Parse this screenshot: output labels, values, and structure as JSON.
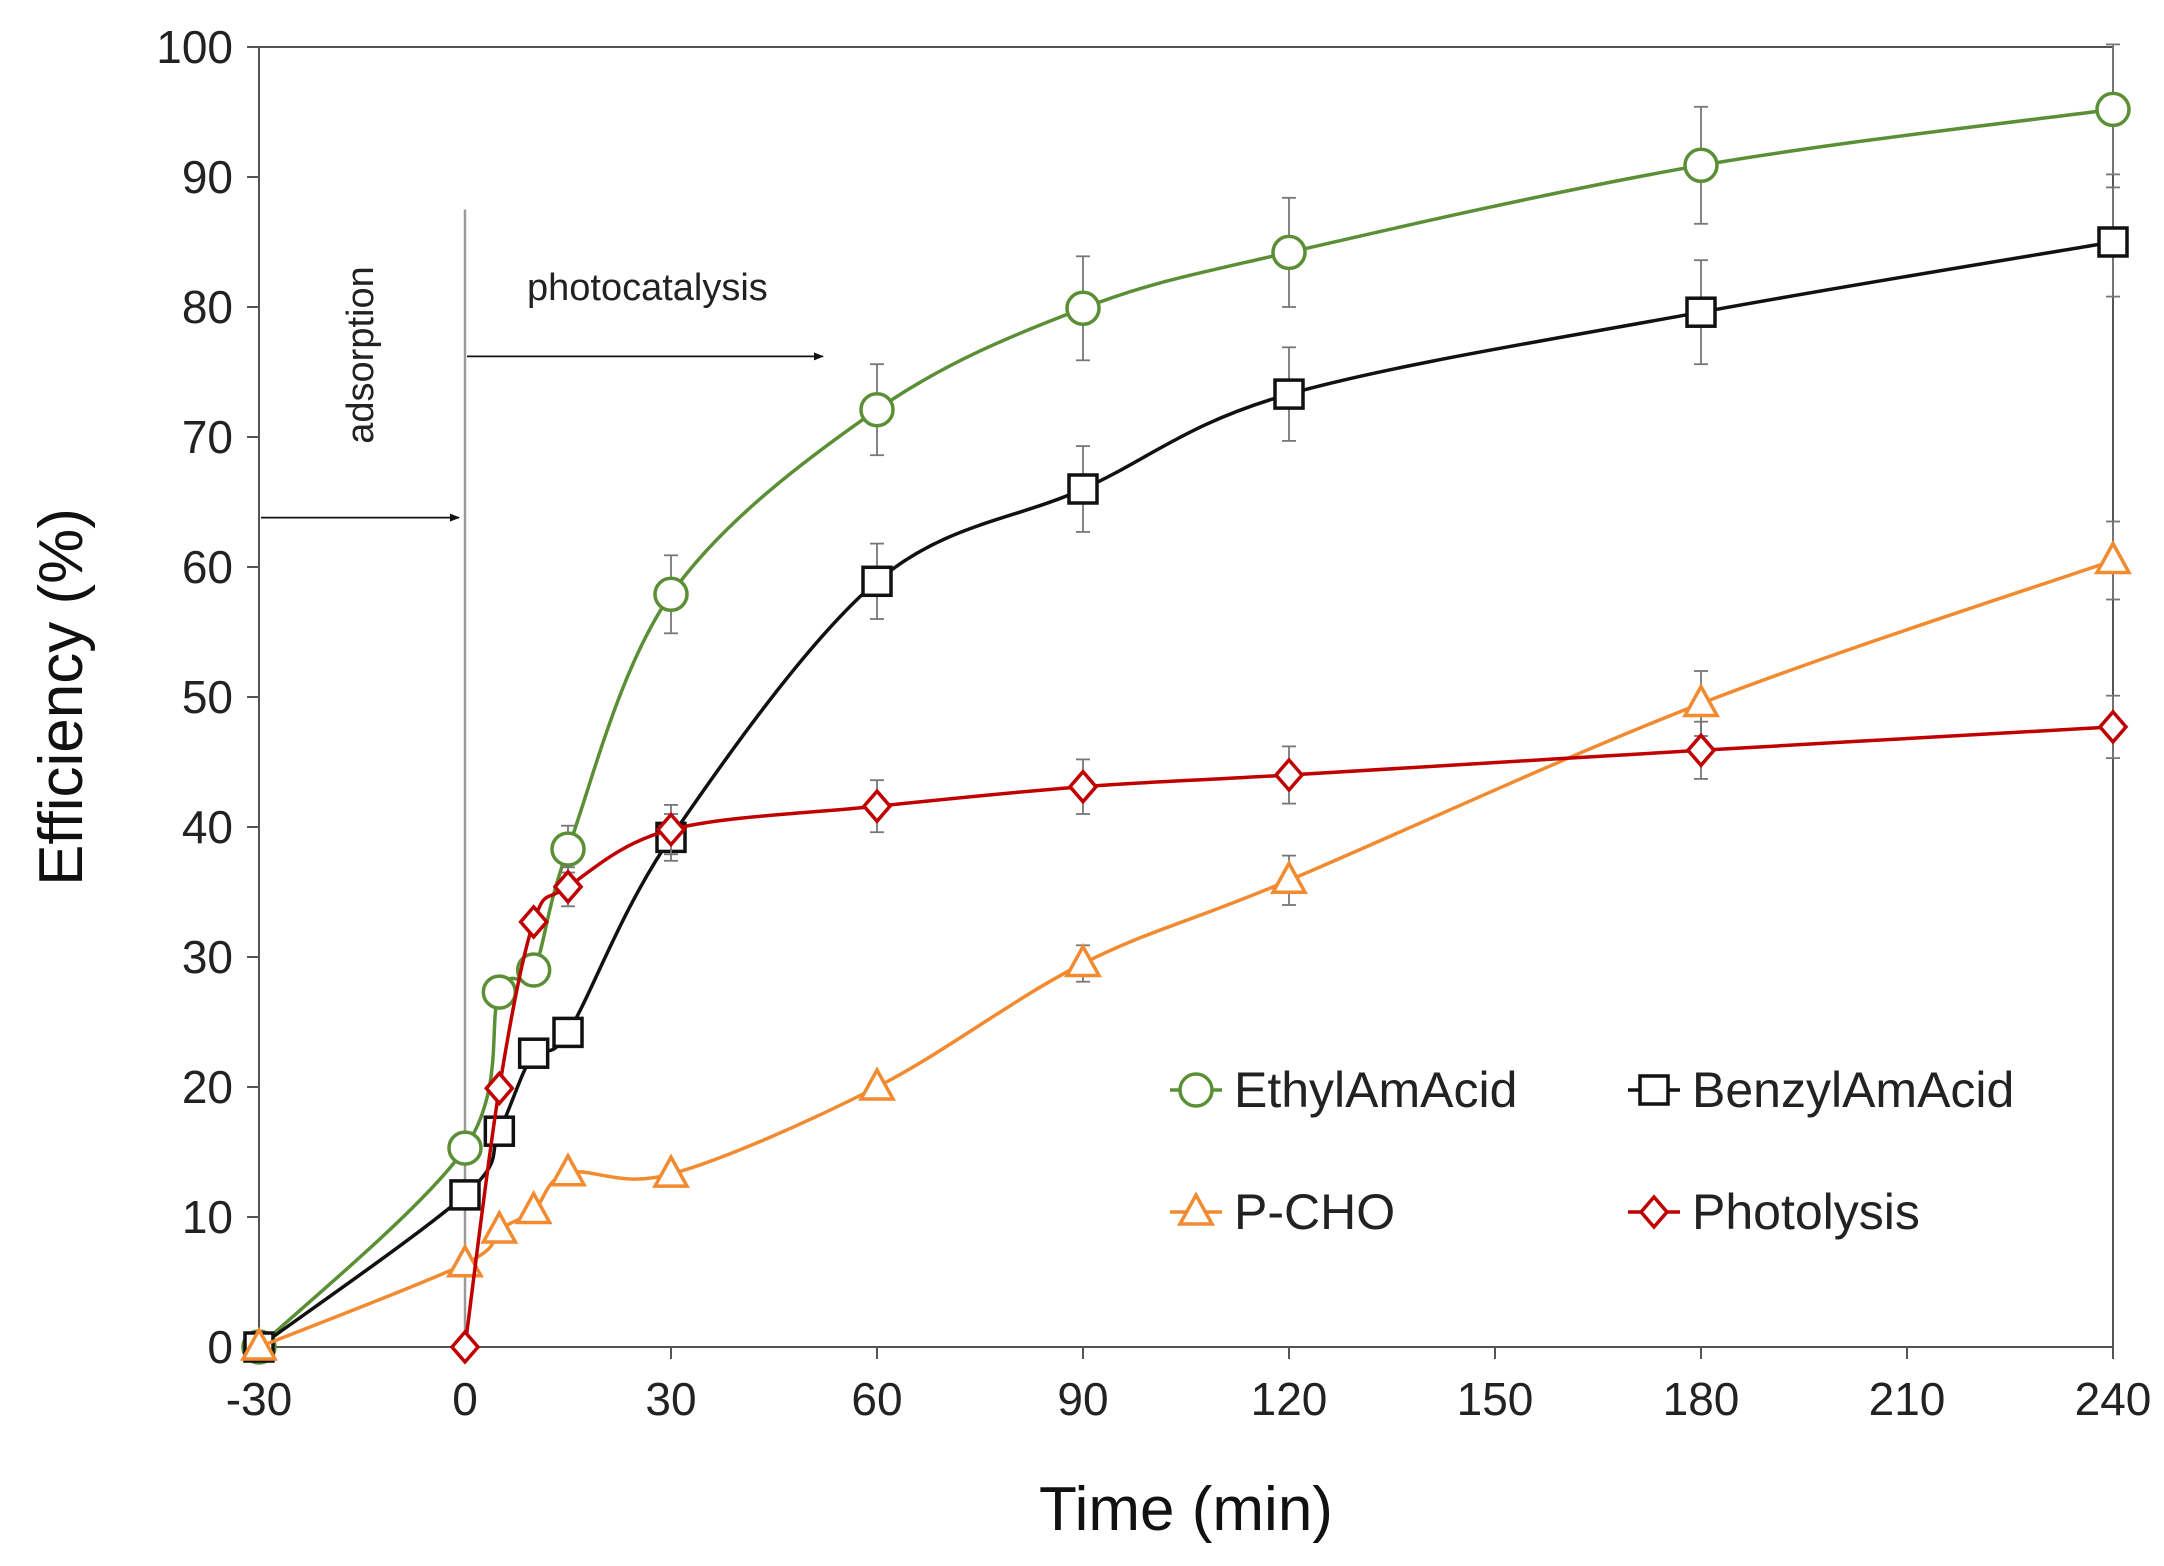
{
  "chart_data": {
    "type": "line",
    "title": "",
    "xlabel": "Time (min)",
    "ylabel": "Efficiency (%)",
    "xlim": [
      -30,
      240
    ],
    "ylim": [
      0,
      100
    ],
    "xticks": [
      -30,
      0,
      30,
      60,
      90,
      120,
      150,
      180,
      210,
      240
    ],
    "yticks": [
      0,
      10,
      20,
      30,
      40,
      50,
      60,
      70,
      80,
      90,
      100
    ],
    "legend_position": "bottom-right",
    "annotations": [
      {
        "text": "adsorption",
        "spans_x": [
          -30,
          0
        ],
        "arrow_at_y": 63.8
      },
      {
        "text": "photocatalysis",
        "spans_x": [
          0,
          53
        ],
        "arrow_at_y": 76.2
      },
      {
        "text": "",
        "type": "vline",
        "x": 0
      }
    ],
    "series": [
      {
        "name": "EthylAmAcid",
        "color": "#5b8f35",
        "marker": "circle",
        "x": [
          -30,
          0,
          5,
          10,
          15,
          30,
          60,
          90,
          120,
          180,
          240
        ],
        "y": [
          0,
          15.3,
          27.3,
          29.0,
          38.3,
          57.9,
          72.1,
          79.9,
          84.2,
          90.9,
          95.2
        ],
        "err": [
          0,
          0,
          0,
          0,
          1.8,
          3.0,
          3.5,
          4.0,
          4.2,
          4.5,
          5.0
        ]
      },
      {
        "name": "BenzylAmAcid",
        "color": "#111111",
        "marker": "square",
        "x": [
          -30,
          0,
          5,
          10,
          15,
          30,
          60,
          90,
          120,
          180,
          240
        ],
        "y": [
          0,
          11.7,
          16.6,
          22.6,
          24.2,
          39.2,
          58.9,
          66.0,
          73.3,
          79.6,
          85.0
        ],
        "err": [
          0,
          0,
          0,
          0,
          0,
          1.8,
          2.9,
          3.3,
          3.6,
          4.0,
          4.2
        ]
      },
      {
        "name": "P-CHO",
        "color": "#f28a30",
        "marker": "triangle",
        "x": [
          -30,
          0,
          5,
          10,
          15,
          30,
          60,
          90,
          120,
          180,
          240
        ],
        "y": [
          0,
          6.4,
          9.0,
          10.5,
          13.4,
          13.3,
          20.0,
          29.5,
          35.9,
          49.5,
          60.5
        ],
        "err": [
          0,
          0,
          0,
          0,
          0,
          0,
          0,
          1.4,
          1.9,
          2.5,
          3.0
        ]
      },
      {
        "name": "Photolysis",
        "color": "#c00000",
        "marker": "diamond",
        "x": [
          0,
          5,
          10,
          15,
          30,
          60,
          90,
          120,
          180,
          240
        ],
        "y": [
          0,
          19.9,
          32.7,
          35.4,
          39.8,
          41.6,
          43.1,
          44.0,
          45.9,
          47.7
        ],
        "err": [
          0,
          0,
          0,
          1.5,
          1.9,
          2.0,
          2.1,
          2.2,
          2.2,
          2.4
        ]
      }
    ]
  }
}
